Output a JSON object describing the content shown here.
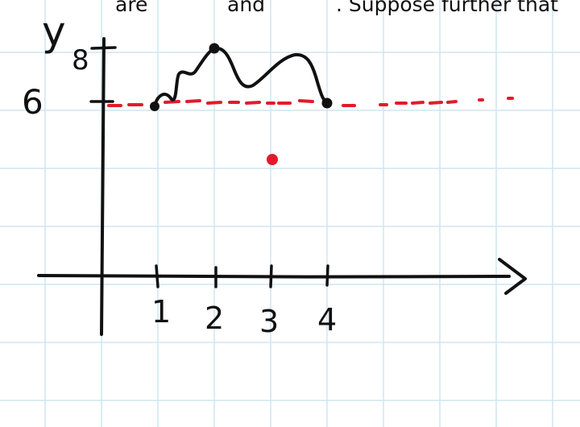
{
  "header_fragments": {
    "part1": "are",
    "part2": "and",
    "part3": ". Suppose further that"
  },
  "axis_labels": {
    "y": "y",
    "y_value_8": "8",
    "y_value_6": "6"
  },
  "x_tick_labels": [
    "1",
    "2",
    "3",
    "4"
  ],
  "colors": {
    "grid": "#cfe6f2",
    "ink": "#111111",
    "red": "#e11b2b",
    "background": "#ffffff"
  },
  "sketch": {
    "curve_points": [
      {
        "x": 1,
        "y": 6,
        "marked": true
      },
      {
        "x": 2,
        "y": 8,
        "marked": true
      },
      {
        "x": 4,
        "y": 6,
        "marked": true
      }
    ],
    "dashed_level_y": 6,
    "isolated_point": {
      "x": 3,
      "y": 4.2
    }
  }
}
